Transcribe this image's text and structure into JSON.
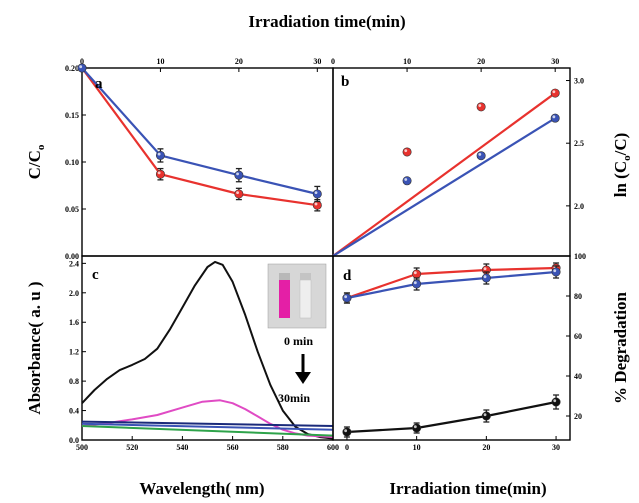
{
  "figure": {
    "top_title": "Irradiation time(min)",
    "bottom_left_title": "Wavelength( nm)",
    "bottom_right_title": "Irradiation time(min)"
  },
  "colors": {
    "red": "#e8322e",
    "blue": "#3a53b5",
    "black": "#111111",
    "magenta": "#e04bc4",
    "green": "#2ea34a",
    "navy": "#1a2a7a"
  },
  "chart_data": [
    {
      "panel": "a",
      "type": "line",
      "ylabel": "C/C",
      "ylabel_sub": "o",
      "x_ticks": [
        "0",
        "10",
        "20",
        "30"
      ],
      "y_ticks": [
        "0.00",
        "0.05",
        "0.10",
        "0.15",
        "0.20"
      ],
      "xlim": [
        0,
        32
      ],
      "ylim": [
        0,
        0.2
      ],
      "x": [
        0,
        10,
        20,
        30
      ],
      "series": [
        {
          "color": "red",
          "values": [
            0.2,
            0.087,
            0.066,
            0.054
          ],
          "err": [
            0,
            0.006,
            0.006,
            0.006
          ]
        },
        {
          "color": "blue",
          "values": [
            0.2,
            0.107,
            0.086,
            0.066
          ],
          "err": [
            0,
            0.007,
            0.007,
            0.008
          ]
        }
      ]
    },
    {
      "panel": "b",
      "type": "scatter",
      "ylabel": "ln (C",
      "ylabel_sub": "o",
      "ylabel_end": "/C)",
      "x_ticks": [
        "0",
        "10",
        "20",
        "30"
      ],
      "y_ticks": [
        "2.0",
        "2.5",
        "3.0"
      ],
      "xlim": [
        0,
        32
      ],
      "ylim": [
        1.6,
        3.1
      ],
      "series": [
        {
          "color": "red",
          "x": [
            10,
            20,
            30
          ],
          "values": [
            2.43,
            2.79,
            2.9
          ],
          "fit": [
            [
              0,
              1.6
            ],
            [
              30,
              2.9
            ]
          ]
        },
        {
          "color": "blue",
          "x": [
            10,
            20,
            30
          ],
          "values": [
            2.2,
            2.4,
            2.7
          ],
          "fit": [
            [
              0,
              1.6
            ],
            [
              30,
              2.7
            ]
          ]
        }
      ]
    },
    {
      "panel": "c",
      "type": "line",
      "ylabel": "Absorbance( a. u )",
      "x_ticks": [
        "500",
        "520",
        "540",
        "560",
        "580",
        "600"
      ],
      "y_ticks": [
        "0.0",
        "0.4",
        "0.8",
        "1.2",
        "1.6",
        "2.0",
        "2.4"
      ],
      "xlim": [
        500,
        600
      ],
      "ylim": [
        0,
        2.5
      ],
      "inset_labels": [
        "0 min",
        "30min"
      ],
      "series": [
        {
          "color": "black",
          "x": [
            500,
            505,
            510,
            515,
            520,
            525,
            530,
            535,
            540,
            545,
            550,
            553,
            556,
            560,
            565,
            570,
            575,
            580,
            585,
            590,
            595,
            600
          ],
          "values": [
            0.5,
            0.68,
            0.83,
            0.95,
            1.02,
            1.1,
            1.24,
            1.5,
            1.8,
            2.1,
            2.35,
            2.42,
            2.38,
            2.15,
            1.7,
            1.2,
            0.75,
            0.4,
            0.18,
            0.08,
            0.04,
            0.02
          ]
        },
        {
          "color": "magenta",
          "x": [
            500,
            510,
            520,
            530,
            540,
            548,
            555,
            560,
            565,
            570,
            575,
            580,
            585,
            590,
            595,
            600
          ],
          "values": [
            0.19,
            0.23,
            0.28,
            0.34,
            0.44,
            0.52,
            0.54,
            0.5,
            0.42,
            0.32,
            0.22,
            0.14,
            0.09,
            0.06,
            0.05,
            0.04
          ]
        },
        {
          "color": "navy",
          "x": [
            500,
            600
          ],
          "values": [
            0.25,
            0.19
          ]
        },
        {
          "color": "blue",
          "x": [
            500,
            600
          ],
          "values": [
            0.22,
            0.14
          ]
        },
        {
          "color": "green",
          "x": [
            500,
            600
          ],
          "values": [
            0.19,
            0.06
          ]
        }
      ]
    },
    {
      "panel": "d",
      "type": "line",
      "ylabel": "% Degradation",
      "x_ticks": [
        "0",
        "10",
        "20",
        "30"
      ],
      "y_ticks": [
        "20",
        "40",
        "60",
        "80",
        "100"
      ],
      "xlim": [
        -2,
        32
      ],
      "ylim": [
        8,
        100
      ],
      "x": [
        0,
        10,
        20,
        30
      ],
      "series": [
        {
          "color": "red",
          "values": [
            79,
            91,
            93,
            94
          ],
          "err": [
            2.5,
            3,
            3,
            2.5
          ]
        },
        {
          "color": "blue",
          "values": [
            79,
            86,
            89,
            92
          ],
          "err": [
            2.5,
            3,
            3,
            3
          ]
        },
        {
          "color": "black",
          "values": [
            12,
            14,
            20,
            27
          ],
          "err": [
            2.5,
            2.5,
            3,
            3.5
          ]
        }
      ]
    }
  ]
}
